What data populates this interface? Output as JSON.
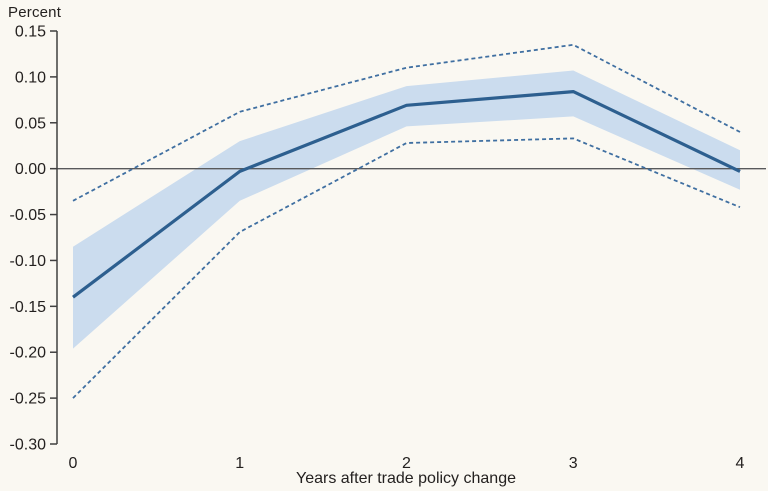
{
  "chart": {
    "background_color": "#faf8f2",
    "text_color": "#242120",
    "axis_color": "#404040",
    "zero_line_color": "#58595b",
    "band_color": "#cbdcee",
    "solid_line_color": "#2d5f8f",
    "dashed_line_color": "#3f6fa1"
  },
  "chart_data": {
    "type": "line",
    "title": "",
    "ylabel": "Percent",
    "xlabel": "Years after trade policy change",
    "x": [
      0,
      1,
      2,
      3,
      4
    ],
    "xtick_labels": [
      "0",
      "1",
      "2",
      "3",
      "4"
    ],
    "ytick_labels": [
      "0.15",
      "0.10",
      "0.05",
      "0.00",
      "-0.05",
      "-0.10",
      "-0.15",
      "-0.20",
      "-0.25",
      "-0.30"
    ],
    "ylim": [
      -0.3,
      0.15
    ],
    "xlim": [
      0,
      4
    ],
    "grid": false,
    "legend": "none",
    "zero_reference_line": true,
    "series": [
      {
        "name": "point-estimate",
        "style": "solid",
        "values": [
          -0.14,
          -0.003,
          0.069,
          0.084,
          -0.003
        ]
      },
      {
        "name": "inner-band-upper",
        "style": "band-upper",
        "values": [
          -0.085,
          0.03,
          0.09,
          0.107,
          0.02
        ]
      },
      {
        "name": "inner-band-lower",
        "style": "band-lower",
        "values": [
          -0.196,
          -0.035,
          0.046,
          0.057,
          -0.023
        ]
      },
      {
        "name": "outer-dashed-upper",
        "style": "dashed",
        "values": [
          -0.035,
          0.062,
          0.11,
          0.135,
          0.04
        ]
      },
      {
        "name": "outer-dashed-lower",
        "style": "dashed",
        "values": [
          -0.25,
          -0.069,
          0.028,
          0.033,
          -0.042
        ]
      }
    ]
  }
}
